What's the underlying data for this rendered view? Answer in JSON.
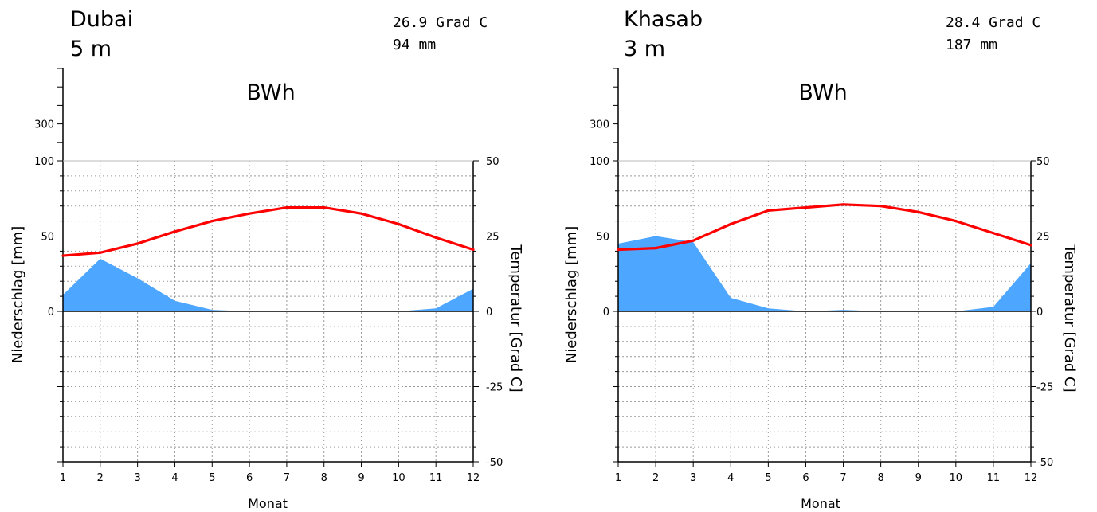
{
  "chart_data": [
    {
      "type": "area",
      "station": "Dubai",
      "elevation": "5 m",
      "summary_temp": "26.9 Grad C",
      "summary_precip": "94 mm",
      "climate_class": "BWh",
      "xlabel": "Monat",
      "ylabel_left": "Niederschlag [mm]",
      "ylabel_right": "Temperatur [Grad C]",
      "categories": [
        "1",
        "2",
        "3",
        "4",
        "5",
        "6",
        "7",
        "8",
        "9",
        "10",
        "11",
        "12"
      ],
      "series": [
        {
          "name": "Niederschlag",
          "axis": "left",
          "unit": "mm",
          "kind": "area",
          "color": "#4da6ff",
          "values": [
            11,
            35,
            22,
            7,
            1,
            0,
            0,
            0,
            0,
            0,
            2,
            15
          ]
        },
        {
          "name": "Temperatur",
          "axis": "right",
          "unit": "Grad C",
          "kind": "line",
          "color": "#ff0000",
          "values": [
            18.5,
            19.5,
            22.5,
            26.5,
            30.0,
            32.5,
            34.5,
            34.5,
            32.5,
            29.0,
            24.5,
            20.5
          ]
        }
      ],
      "left_ticks": [
        "0",
        "50",
        "100",
        "300"
      ],
      "right_ticks": [
        "50",
        "25",
        "0",
        "-25",
        "-50"
      ],
      "ylim_precip_linear": [
        0,
        100
      ],
      "ylim_temp": [
        -50,
        50
      ],
      "grid": true
    },
    {
      "type": "area",
      "station": "Khasab",
      "elevation": "3 m",
      "summary_temp": "28.4 Grad C",
      "summary_precip": "187 mm",
      "climate_class": "BWh",
      "xlabel": "Monat",
      "ylabel_left": "Niederschlag [mm]",
      "ylabel_right": "Temperatur [Grad C]",
      "categories": [
        "1",
        "2",
        "3",
        "4",
        "5",
        "6",
        "7",
        "8",
        "9",
        "10",
        "11",
        "12"
      ],
      "series": [
        {
          "name": "Niederschlag",
          "axis": "left",
          "unit": "mm",
          "kind": "area",
          "color": "#4da6ff",
          "values": [
            45,
            50,
            46,
            9,
            2,
            0,
            1,
            0,
            0,
            0,
            3,
            32
          ]
        },
        {
          "name": "Temperatur",
          "axis": "right",
          "unit": "Grad C",
          "kind": "line",
          "color": "#ff0000",
          "values": [
            20.5,
            21.0,
            23.5,
            29.0,
            33.5,
            34.5,
            35.5,
            35.0,
            33.0,
            30.0,
            26.0,
            22.0
          ]
        }
      ],
      "left_ticks": [
        "0",
        "50",
        "100",
        "300"
      ],
      "right_ticks": [
        "50",
        "25",
        "0",
        "-25",
        "-50"
      ],
      "ylim_precip_linear": [
        0,
        100
      ],
      "ylim_temp": [
        -50,
        50
      ],
      "grid": true
    }
  ]
}
